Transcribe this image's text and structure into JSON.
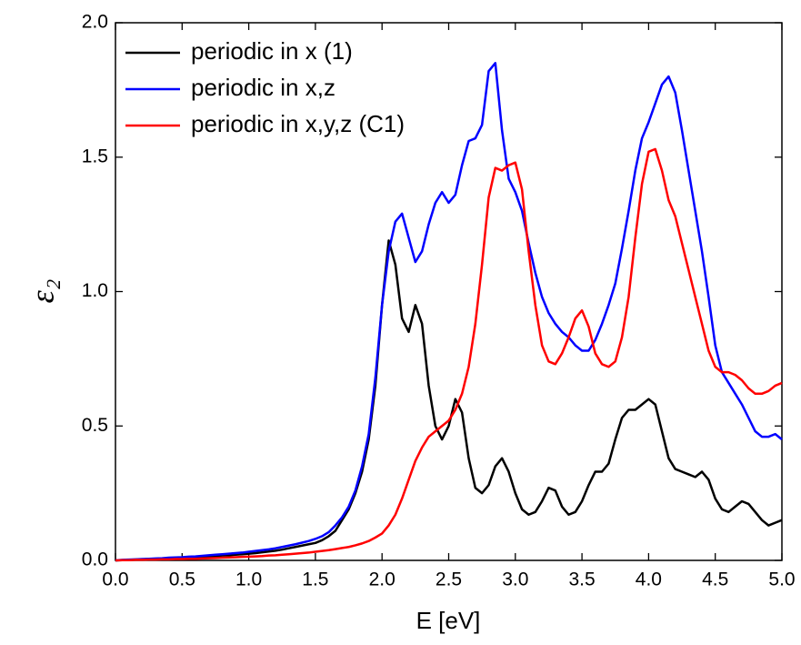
{
  "chart_data": {
    "type": "line",
    "xlabel": "E [eV]",
    "ylabel": "ε₂",
    "x": [
      0,
      0.05,
      0.1,
      0.15,
      0.2,
      0.25,
      0.3,
      0.35,
      0.4,
      0.45,
      0.5,
      0.55,
      0.6,
      0.65,
      0.7,
      0.75,
      0.8,
      0.85,
      0.9,
      0.95,
      1.0,
      1.05,
      1.1,
      1.15,
      1.2,
      1.25,
      1.3,
      1.35,
      1.4,
      1.45,
      1.5,
      1.55,
      1.6,
      1.65,
      1.7,
      1.75,
      1.8,
      1.85,
      1.9,
      1.95,
      2.0,
      2.05,
      2.1,
      2.15,
      2.2,
      2.25,
      2.3,
      2.35,
      2.4,
      2.45,
      2.5,
      2.55,
      2.6,
      2.65,
      2.7,
      2.75,
      2.8,
      2.85,
      2.9,
      2.95,
      3.0,
      3.05,
      3.1,
      3.15,
      3.2,
      3.25,
      3.3,
      3.35,
      3.4,
      3.45,
      3.5,
      3.55,
      3.6,
      3.65,
      3.7,
      3.75,
      3.8,
      3.85,
      3.9,
      3.95,
      4.0,
      4.05,
      4.1,
      4.15,
      4.2,
      4.25,
      4.3,
      4.35,
      4.4,
      4.45,
      4.5,
      4.55,
      4.6,
      4.65,
      4.7,
      4.75,
      4.8,
      4.85,
      4.9,
      4.95,
      5.0
    ],
    "series": [
      {
        "name": "periodic in x (1)",
        "color": "#000000",
        "values": [
          0,
          0.001,
          0.002,
          0.003,
          0.004,
          0.005,
          0.006,
          0.007,
          0.008,
          0.009,
          0.01,
          0.011,
          0.012,
          0.013,
          0.015,
          0.016,
          0.018,
          0.019,
          0.021,
          0.023,
          0.025,
          0.027,
          0.03,
          0.033,
          0.036,
          0.04,
          0.045,
          0.05,
          0.055,
          0.06,
          0.065,
          0.075,
          0.09,
          0.11,
          0.15,
          0.19,
          0.25,
          0.33,
          0.45,
          0.65,
          0.95,
          1.19,
          1.1,
          0.9,
          0.85,
          0.95,
          0.88,
          0.65,
          0.5,
          0.45,
          0.5,
          0.6,
          0.55,
          0.38,
          0.27,
          0.25,
          0.28,
          0.35,
          0.38,
          0.33,
          0.25,
          0.19,
          0.17,
          0.18,
          0.22,
          0.27,
          0.26,
          0.2,
          0.17,
          0.18,
          0.22,
          0.28,
          0.33,
          0.33,
          0.36,
          0.45,
          0.53,
          0.56,
          0.56,
          0.58,
          0.6,
          0.58,
          0.48,
          0.38,
          0.34,
          0.33,
          0.32,
          0.31,
          0.33,
          0.3,
          0.23,
          0.19,
          0.18,
          0.2,
          0.22,
          0.21,
          0.18,
          0.15,
          0.13,
          0.14,
          0.15
        ]
      },
      {
        "name": "periodic in x,z",
        "color": "#0000ff",
        "values": [
          0,
          0.002,
          0.003,
          0.004,
          0.005,
          0.006,
          0.007,
          0.008,
          0.01,
          0.011,
          0.012,
          0.014,
          0.015,
          0.017,
          0.019,
          0.021,
          0.023,
          0.025,
          0.027,
          0.029,
          0.032,
          0.035,
          0.038,
          0.041,
          0.045,
          0.05,
          0.055,
          0.06,
          0.066,
          0.072,
          0.08,
          0.09,
          0.105,
          0.13,
          0.16,
          0.2,
          0.26,
          0.35,
          0.47,
          0.68,
          0.95,
          1.15,
          1.26,
          1.29,
          1.2,
          1.11,
          1.15,
          1.25,
          1.33,
          1.37,
          1.33,
          1.36,
          1.47,
          1.56,
          1.57,
          1.62,
          1.82,
          1.85,
          1.6,
          1.42,
          1.37,
          1.3,
          1.18,
          1.07,
          0.98,
          0.92,
          0.88,
          0.85,
          0.83,
          0.8,
          0.78,
          0.78,
          0.82,
          0.88,
          0.95,
          1.03,
          1.16,
          1.3,
          1.45,
          1.57,
          1.63,
          1.7,
          1.77,
          1.8,
          1.74,
          1.6,
          1.45,
          1.3,
          1.15,
          0.98,
          0.8,
          0.7,
          0.66,
          0.62,
          0.58,
          0.53,
          0.48,
          0.46,
          0.46,
          0.47,
          0.45
        ]
      },
      {
        "name": "periodic in x,y,z (C1)",
        "color": "#ff0000",
        "values": [
          0,
          0.001,
          0.001,
          0.002,
          0.002,
          0.003,
          0.003,
          0.004,
          0.004,
          0.005,
          0.005,
          0.006,
          0.006,
          0.007,
          0.008,
          0.009,
          0.01,
          0.011,
          0.012,
          0.013,
          0.014,
          0.015,
          0.016,
          0.018,
          0.019,
          0.021,
          0.023,
          0.025,
          0.027,
          0.029,
          0.032,
          0.035,
          0.038,
          0.042,
          0.046,
          0.05,
          0.056,
          0.063,
          0.072,
          0.085,
          0.1,
          0.13,
          0.17,
          0.23,
          0.3,
          0.37,
          0.42,
          0.46,
          0.48,
          0.5,
          0.52,
          0.56,
          0.62,
          0.72,
          0.88,
          1.1,
          1.35,
          1.46,
          1.45,
          1.47,
          1.48,
          1.38,
          1.15,
          0.95,
          0.8,
          0.74,
          0.73,
          0.77,
          0.83,
          0.9,
          0.93,
          0.87,
          0.77,
          0.73,
          0.72,
          0.74,
          0.83,
          0.98,
          1.2,
          1.4,
          1.52,
          1.53,
          1.45,
          1.34,
          1.28,
          1.18,
          1.08,
          0.98,
          0.88,
          0.78,
          0.72,
          0.7,
          0.7,
          0.69,
          0.67,
          0.64,
          0.62,
          0.62,
          0.63,
          0.65,
          0.66
        ]
      }
    ],
    "xlim": [
      0,
      5
    ],
    "xticks": [
      {
        "value": 0,
        "label": "0.0"
      },
      {
        "value": 0.5,
        "label": "0.5"
      },
      {
        "value": 1,
        "label": "1.0"
      },
      {
        "value": 1.5,
        "label": "1.5"
      },
      {
        "value": 2,
        "label": "2.0"
      },
      {
        "value": 2.5,
        "label": "2.5"
      },
      {
        "value": 3,
        "label": "3.0"
      },
      {
        "value": 3.5,
        "label": "3.5"
      },
      {
        "value": 4,
        "label": "4.0"
      },
      {
        "value": 4.5,
        "label": "4.5"
      },
      {
        "value": 5,
        "label": "5.0"
      }
    ],
    "ylim": [
      0,
      2
    ],
    "yticks": [
      {
        "value": 0,
        "label": "0.0"
      },
      {
        "value": 0.5,
        "label": "0.5"
      },
      {
        "value": 1,
        "label": "1.0"
      },
      {
        "value": 1.5,
        "label": "1.5"
      },
      {
        "value": 2,
        "label": "2.0"
      }
    ],
    "grid": false,
    "legend": "upper left"
  }
}
